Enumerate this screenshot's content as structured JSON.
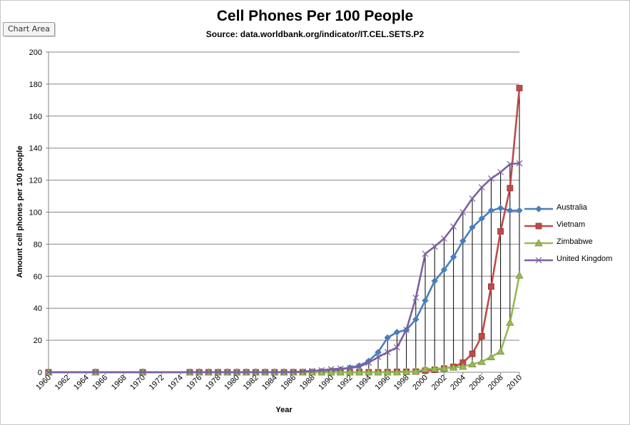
{
  "chart_area_tag": "Chart Area",
  "chart_data": {
    "type": "line",
    "title": "Cell Phones Per 100 People",
    "subtitle": "Source: data.worldbank.org/indicator/IT.CEL.SETS.P2",
    "xlabel": "Year",
    "ylabel": "Amount cell phones per 100 people",
    "xlim": [
      1960,
      2010
    ],
    "ylim": [
      0,
      200
    ],
    "y_ticks": [
      0,
      20,
      40,
      60,
      80,
      100,
      120,
      140,
      160,
      180,
      200
    ],
    "x_ticks": [
      "1960",
      "1962",
      "1964",
      "1966",
      "1968",
      "1970",
      "1972",
      "1974",
      "1976",
      "1978",
      "1980",
      "1982",
      "1984",
      "1986",
      "1988",
      "1990",
      "1992",
      "1994",
      "1996",
      "1998",
      "2000",
      "2002",
      "2004",
      "2006",
      "2008",
      "2010"
    ],
    "grid": "horizontal",
    "legend_position": "right",
    "high_low_lines": true,
    "x": [
      1960,
      1965,
      1970,
      1975,
      1976,
      1977,
      1978,
      1979,
      1980,
      1981,
      1982,
      1983,
      1984,
      1985,
      1986,
      1987,
      1988,
      1989,
      1990,
      1991,
      1992,
      1993,
      1994,
      1995,
      1996,
      1997,
      1998,
      1999,
      2000,
      2001,
      2002,
      2003,
      2004,
      2005,
      2006,
      2007,
      2008,
      2009,
      2010
    ],
    "series": [
      {
        "name": "Australia",
        "color": "#4a7ebb",
        "marker": "diamond",
        "values": [
          0,
          0,
          0,
          0,
          0,
          0,
          0,
          0,
          0,
          0,
          0,
          0,
          0,
          0,
          0,
          0.1,
          0.3,
          0.6,
          1,
          1.7,
          2.9,
          4.1,
          7,
          12.5,
          21.6,
          25,
          26.4,
          33,
          44.8,
          57,
          64,
          72,
          82,
          90.5,
          96,
          101,
          102.5,
          101,
          101
        ]
      },
      {
        "name": "Vietnam",
        "color": "#be4b48",
        "marker": "square",
        "values": [
          0,
          0,
          0,
          0,
          0,
          0,
          0,
          0,
          0,
          0,
          0,
          0,
          0,
          0,
          0,
          0,
          0,
          0,
          0,
          0,
          0,
          0,
          0,
          0,
          0.1,
          0.3,
          0.3,
          0.4,
          1,
          1.5,
          2.3,
          3.4,
          6,
          11.5,
          22.5,
          53.5,
          88,
          115,
          177.5
        ]
      },
      {
        "name": "Zimbabwe",
        "color": "#98b954",
        "marker": "triangle",
        "values": [
          0,
          0,
          0,
          0,
          0,
          0,
          0,
          0,
          0,
          0,
          0,
          0,
          0,
          0,
          0,
          0,
          0,
          0,
          0,
          0,
          0,
          0,
          0,
          0,
          0,
          0,
          0.3,
          0.5,
          2,
          2.2,
          2.5,
          3,
          3.5,
          5,
          6.5,
          9.5,
          13,
          31,
          60.5
        ]
      },
      {
        "name": "United Kingdom",
        "color": "#7d60a0",
        "marker": "x",
        "values": [
          0,
          0,
          0,
          0,
          0,
          0,
          0,
          0,
          0,
          0,
          0,
          0,
          0,
          0.1,
          0.2,
          0.4,
          0.8,
          1.2,
          1.9,
          2.2,
          2.6,
          3.5,
          6,
          9.5,
          12.5,
          15.5,
          26.5,
          46.5,
          74,
          78.5,
          83.5,
          91,
          100,
          108.5,
          115.5,
          121,
          125,
          130,
          130.5
        ]
      }
    ]
  }
}
